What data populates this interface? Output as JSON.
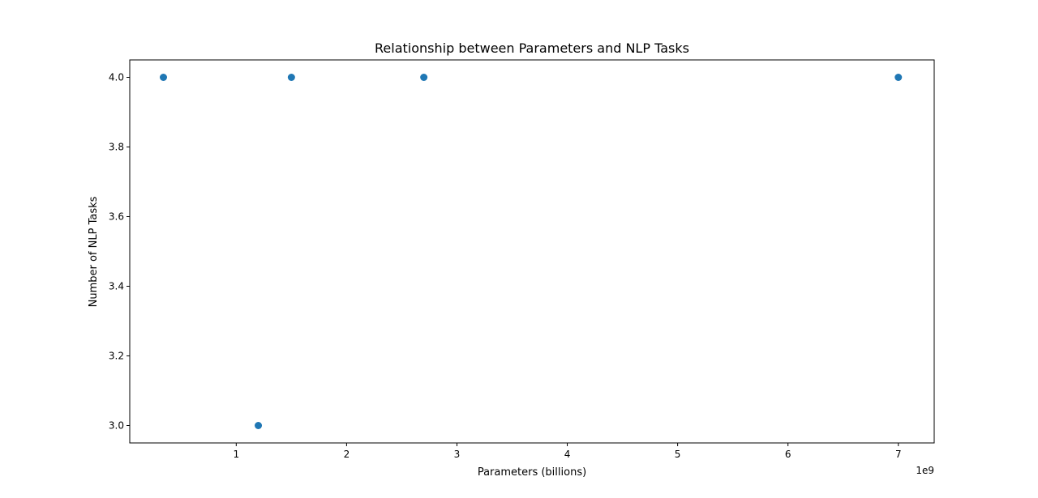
{
  "chart_data": {
    "type": "scatter",
    "title": "Relationship between Parameters and NLP Tasks",
    "xlabel": "Parameters (billions)",
    "ylabel": "Number of NLP Tasks",
    "x_offset_label": "1e9",
    "x_scale": 1000000000,
    "xlim": [
      35000000,
      7325000000
    ],
    "ylim": [
      2.95,
      4.05
    ],
    "x_ticks": [
      1000000000,
      2000000000,
      3000000000,
      4000000000,
      5000000000,
      6000000000,
      7000000000
    ],
    "x_tick_labels": [
      "1",
      "2",
      "3",
      "4",
      "5",
      "6",
      "7"
    ],
    "y_ticks": [
      3.0,
      3.2,
      3.4,
      3.6,
      3.8,
      4.0
    ],
    "y_tick_labels": [
      "3.0",
      "3.2",
      "3.4",
      "3.6",
      "3.8",
      "4.0"
    ],
    "grid": false,
    "marker_color": "#1f77b4",
    "points": [
      {
        "x": 340000000,
        "y": 4
      },
      {
        "x": 1200000000,
        "y": 3
      },
      {
        "x": 1500000000,
        "y": 4
      },
      {
        "x": 2700000000,
        "y": 4
      },
      {
        "x": 7000000000,
        "y": 4
      }
    ]
  }
}
